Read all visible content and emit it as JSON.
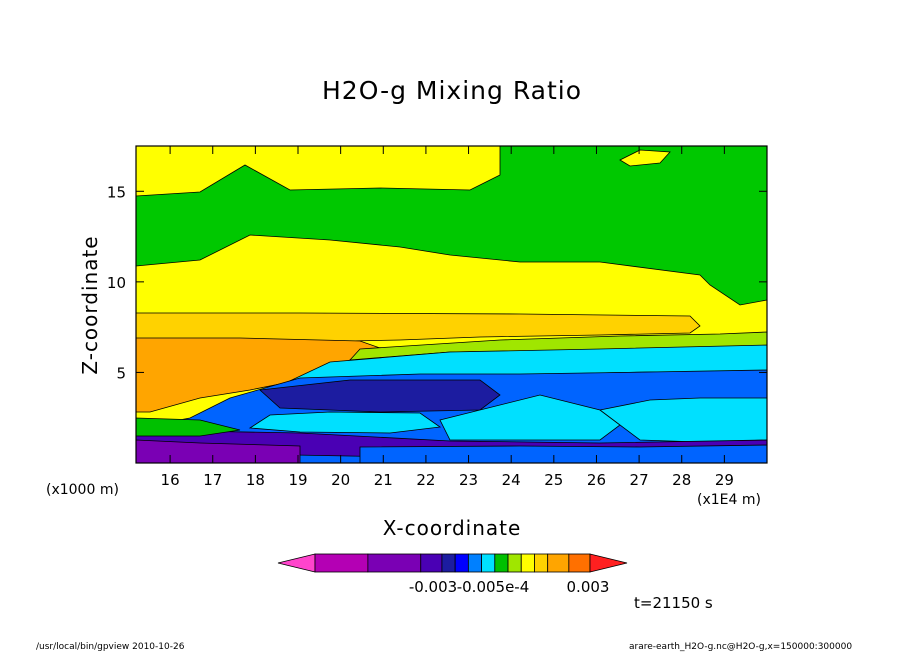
{
  "chart_data": {
    "type": "heatmap",
    "title": "H2O-g Mixing Ratio",
    "xlabel": "X-coordinate",
    "ylabel": "Z-coordinate",
    "x_unit_note": "(x1E4 m)",
    "y_unit_note": "(x1000 m)",
    "x_ticks": [
      "16",
      "17",
      "18",
      "19",
      "20",
      "21",
      "22",
      "23",
      "24",
      "25",
      "26",
      "27",
      "28",
      "29"
    ],
    "x_tick_values": [
      16,
      17,
      18,
      19,
      20,
      21,
      22,
      23,
      24,
      25,
      26,
      27,
      28,
      29
    ],
    "y_ticks": [
      "5",
      "10",
      "15"
    ],
    "y_tick_values": [
      5,
      10,
      15
    ],
    "xlim": [
      15.2,
      30.0
    ],
    "ylim": [
      0,
      17.5
    ],
    "colorbar": {
      "labels": [
        "-0.003",
        "-0.005e-4",
        "0.003"
      ],
      "colors": [
        "#ff44cc",
        "#b400b4",
        "#7a00b4",
        "#4a00b4",
        "#1c1ca0",
        "#0000ff",
        "#0080ff",
        "#00e0ff",
        "#00c000",
        "#a0e600",
        "#ffff00",
        "#ffd200",
        "#ffa500",
        "#ff7000",
        "#ff2020"
      ]
    },
    "time_label": "t=21150 s"
  },
  "footer": {
    "left": "/usr/local/bin/gpview   2010-10-26",
    "right": "arare-earth_H2O-g.nc@H2O-g,x=150000:300000"
  }
}
